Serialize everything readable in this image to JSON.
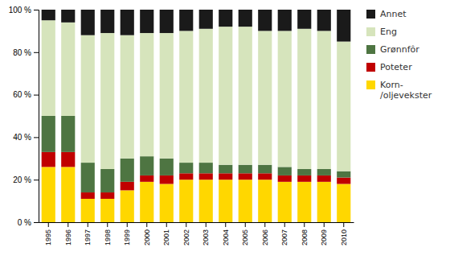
{
  "chart_data": {
    "type": "bar",
    "stacked": true,
    "categories": [
      "1995",
      "1996",
      "1997",
      "1998",
      "1999",
      "2000",
      "2001",
      "2002",
      "2003",
      "2004",
      "2005",
      "2006",
      "2007",
      "2008",
      "2009",
      "2010"
    ],
    "series": [
      {
        "name": "Korn-\n/oljevekster",
        "color": "#FFD700",
        "values": [
          26,
          26,
          11,
          11,
          15,
          19,
          18,
          20,
          20,
          20,
          20,
          20,
          19,
          19,
          19,
          18
        ]
      },
      {
        "name": "Poteter",
        "color": "#C00000",
        "values": [
          7,
          7,
          3,
          3,
          4,
          3,
          4,
          3,
          3,
          3,
          3,
          3,
          3,
          3,
          3,
          3
        ]
      },
      {
        "name": "Grønnfôr",
        "color": "#4E7542",
        "values": [
          17,
          17,
          14,
          11,
          11,
          9,
          8,
          5,
          5,
          4,
          4,
          4,
          4,
          3,
          3,
          3
        ]
      },
      {
        "name": "Eng",
        "color": "#D6E4BC",
        "values": [
          45,
          44,
          60,
          64,
          58,
          58,
          59,
          62,
          63,
          65,
          65,
          63,
          64,
          66,
          65,
          61
        ]
      },
      {
        "name": "Annet",
        "color": "#1A1A1A",
        "values": [
          5,
          6,
          12,
          11,
          12,
          11,
          11,
          10,
          9,
          8,
          8,
          10,
          10,
          9,
          10,
          15
        ]
      }
    ],
    "ylim": [
      0,
      100
    ],
    "yticks": [
      {
        "value": 0,
        "label": "0 %"
      },
      {
        "value": 20,
        "label": "20 %"
      },
      {
        "value": 40,
        "label": "40 %"
      },
      {
        "value": 60,
        "label": "60 %"
      },
      {
        "value": 80,
        "label": "80 %"
      },
      {
        "value": 100,
        "label": "100 %"
      }
    ],
    "grid": false,
    "legend": "right"
  }
}
